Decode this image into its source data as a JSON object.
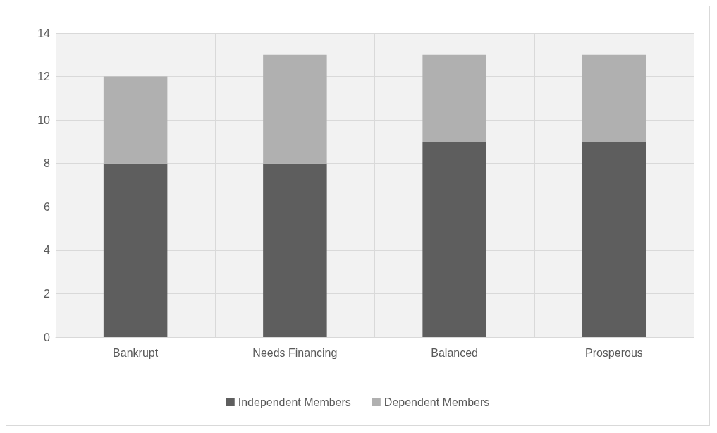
{
  "chart_data": {
    "type": "bar",
    "stacked": true,
    "categories": [
      "Bankrupt",
      "Needs Financing",
      "Balanced",
      "Prosperous"
    ],
    "series": [
      {
        "name": "Independent Members",
        "color": "#5e5e5e",
        "values": [
          8,
          8,
          9,
          9
        ]
      },
      {
        "name": "Dependent Members",
        "color": "#b0b0b0",
        "values": [
          4,
          5,
          4,
          4
        ]
      }
    ],
    "ylim": [
      0,
      14
    ],
    "yticks": [
      0,
      2,
      4,
      6,
      8,
      10,
      12,
      14
    ],
    "grid": true,
    "legend": "bottom"
  }
}
